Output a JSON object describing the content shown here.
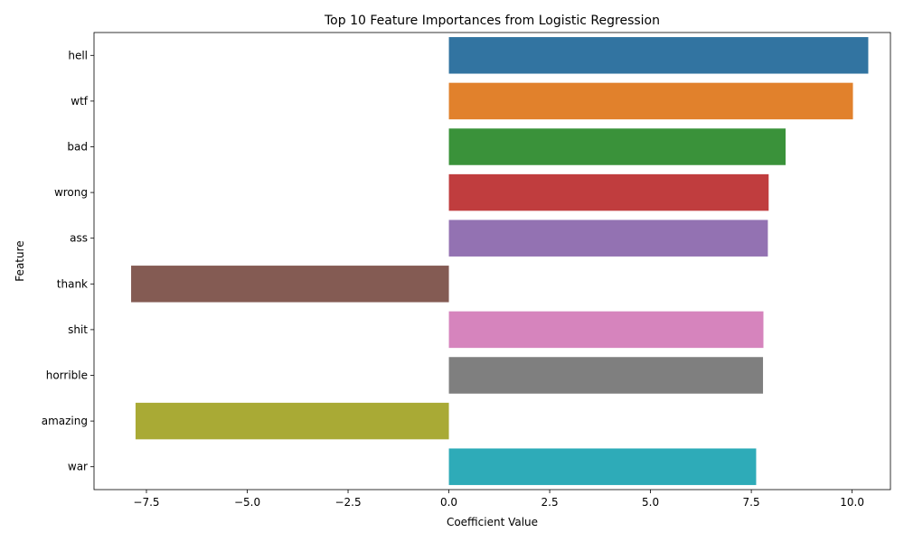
{
  "chart_data": {
    "type": "bar",
    "orientation": "horizontal",
    "title": "Top 10 Feature Importances from Logistic Regression",
    "xlabel": "Coefficient Value",
    "ylabel": "Feature",
    "categories": [
      "hell",
      "wtf",
      "bad",
      "wrong",
      "ass",
      "thank",
      "shit",
      "horrible",
      "amazing",
      "war"
    ],
    "values": [
      10.4,
      10.02,
      8.35,
      7.93,
      7.91,
      -7.88,
      7.8,
      7.79,
      -7.77,
      7.62
    ],
    "colors": [
      "#3274a1",
      "#e1812c",
      "#3a923a",
      "#c03d3e",
      "#9372b2",
      "#845b53",
      "#d684bd",
      "#7f7f7f",
      "#a9aa35",
      "#2eabb8"
    ],
    "xlim": [
      -8.8,
      10.95
    ],
    "xticks": [
      -7.5,
      -5.0,
      -2.5,
      0.0,
      2.5,
      5.0,
      7.5,
      10.0
    ],
    "xtick_labels": [
      "−7.5",
      "−5.0",
      "−2.5",
      "0.0",
      "2.5",
      "5.0",
      "7.5",
      "10.0"
    ],
    "grid": false,
    "legend": "none"
  }
}
